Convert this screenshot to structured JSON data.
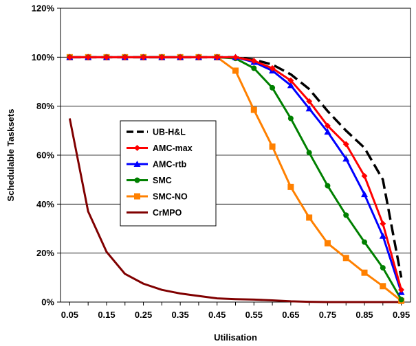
{
  "chart_data": {
    "type": "line",
    "title": "",
    "xlabel": "Utilisation",
    "ylabel": "Schedulable Tasksets",
    "x": [
      0.05,
      0.1,
      0.15,
      0.2,
      0.25,
      0.3,
      0.35,
      0.4,
      0.45,
      0.5,
      0.55,
      0.6,
      0.65,
      0.7,
      0.75,
      0.8,
      0.85,
      0.9,
      0.95
    ],
    "x_tick_labels": [
      "0.05",
      "0.15",
      "0.25",
      "0.35",
      "0.45",
      "0.55",
      "0.65",
      "0.75",
      "0.85",
      "0.95"
    ],
    "x_tick_values": [
      0.05,
      0.15,
      0.25,
      0.35,
      0.45,
      0.55,
      0.65,
      0.75,
      0.85,
      0.95
    ],
    "y_tick_labels": [
      "0%",
      "20%",
      "40%",
      "60%",
      "80%",
      "100%",
      "120%"
    ],
    "y_tick_values": [
      0,
      20,
      40,
      60,
      80,
      100,
      120
    ],
    "xlim": [
      0.025,
      0.975
    ],
    "ylim": [
      0,
      120
    ],
    "grid": "horizontal",
    "legend_position": "center-left",
    "series": [
      {
        "name": "UB-H&L",
        "color": "#000000",
        "dash": true,
        "marker": "none",
        "values": [
          100,
          100,
          100,
          100,
          100,
          100,
          100,
          100,
          100,
          100,
          99,
          97,
          93,
          87,
          78,
          70,
          63,
          50,
          10
        ]
      },
      {
        "name": "AMC-max",
        "color": "#ff0000",
        "dash": false,
        "marker": "diamond",
        "values": [
          100,
          100,
          100,
          100,
          100,
          100,
          100,
          100,
          100,
          100,
          98.5,
          95.5,
          90.5,
          82,
          72,
          64.5,
          51.5,
          32,
          5
        ]
      },
      {
        "name": "AMC-rtb",
        "color": "#0000ff",
        "dash": false,
        "marker": "triangle",
        "values": [
          100,
          100,
          100,
          100,
          100,
          100,
          100,
          100,
          100,
          100,
          98,
          94.5,
          88.5,
          79,
          69.5,
          58.5,
          44,
          27,
          4
        ]
      },
      {
        "name": "SMC",
        "color": "#008000",
        "dash": false,
        "marker": "circle",
        "values": [
          100,
          100,
          100,
          100,
          100,
          100,
          100,
          100,
          100,
          99.5,
          95.5,
          87.5,
          75,
          61,
          47.5,
          35.5,
          24.5,
          14,
          1
        ]
      },
      {
        "name": "SMC-NO",
        "color": "#ff8000",
        "dash": false,
        "marker": "square",
        "values": [
          100,
          100,
          100,
          100,
          100,
          100,
          100,
          100,
          100,
          94.5,
          78.5,
          63.5,
          47,
          34.5,
          24,
          18,
          12,
          6.5,
          0.5
        ]
      },
      {
        "name": "CrMPO",
        "color": "#800000",
        "dash": false,
        "marker": "none",
        "values": [
          75,
          37,
          20.5,
          11.5,
          7.5,
          5,
          3.5,
          2.5,
          1.5,
          1.2,
          1,
          0.7,
          0.3,
          0.1,
          0,
          0,
          0,
          0,
          0
        ]
      }
    ]
  }
}
